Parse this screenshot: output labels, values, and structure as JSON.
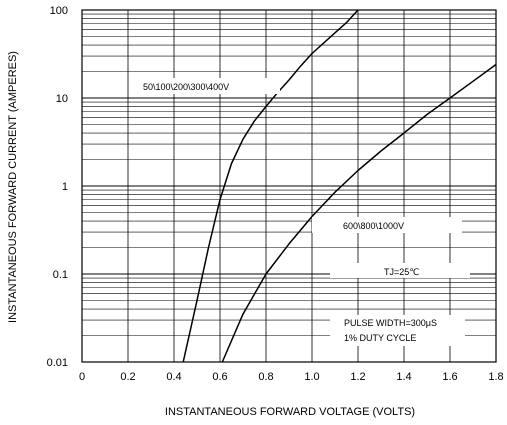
{
  "chart_data": {
    "type": "line",
    "xlabel": "INSTANTANEOUS FORWARD VOLTAGE (VOLTS)",
    "ylabel": "INSTANTANEOUS FORWARD CURRENT (AMPERES)",
    "xlim": [
      0,
      1.8
    ],
    "ylim": [
      0.01,
      100
    ],
    "yscale": "log",
    "x_ticks": [
      "0",
      "0.2",
      "0.4",
      "0.6",
      "0.8",
      "1.0",
      "1.2",
      "1.4",
      "1.6",
      "1.8"
    ],
    "y_ticks": [
      "0.01",
      "0.1",
      "1",
      "10",
      "100"
    ],
    "grid": true,
    "series": [
      {
        "name": "50\\100\\200\\300\\400V",
        "x": [
          0.44,
          0.5,
          0.55,
          0.6,
          0.65,
          0.7,
          0.75,
          0.8,
          0.85,
          0.9,
          0.95,
          1.0,
          1.05,
          1.1,
          1.15,
          1.2
        ],
        "y": [
          0.01,
          0.05,
          0.2,
          0.7,
          1.8,
          3.4,
          5.5,
          8.0,
          11.5,
          16.0,
          23.0,
          32.0,
          42.0,
          55.0,
          72.0,
          100.0
        ]
      },
      {
        "name": "600\\800\\1000V",
        "x": [
          0.61,
          0.7,
          0.8,
          0.9,
          1.0,
          1.1,
          1.2,
          1.3,
          1.4,
          1.5,
          1.6,
          1.7,
          1.8
        ],
        "y": [
          0.01,
          0.035,
          0.1,
          0.22,
          0.45,
          0.85,
          1.5,
          2.5,
          4.0,
          6.5,
          10.0,
          15.5,
          24.0
        ]
      }
    ],
    "annotations": [
      "TJ=25℃",
      "PULSE WIDTH=300μS",
      "1% DUTY CYCLE"
    ]
  }
}
